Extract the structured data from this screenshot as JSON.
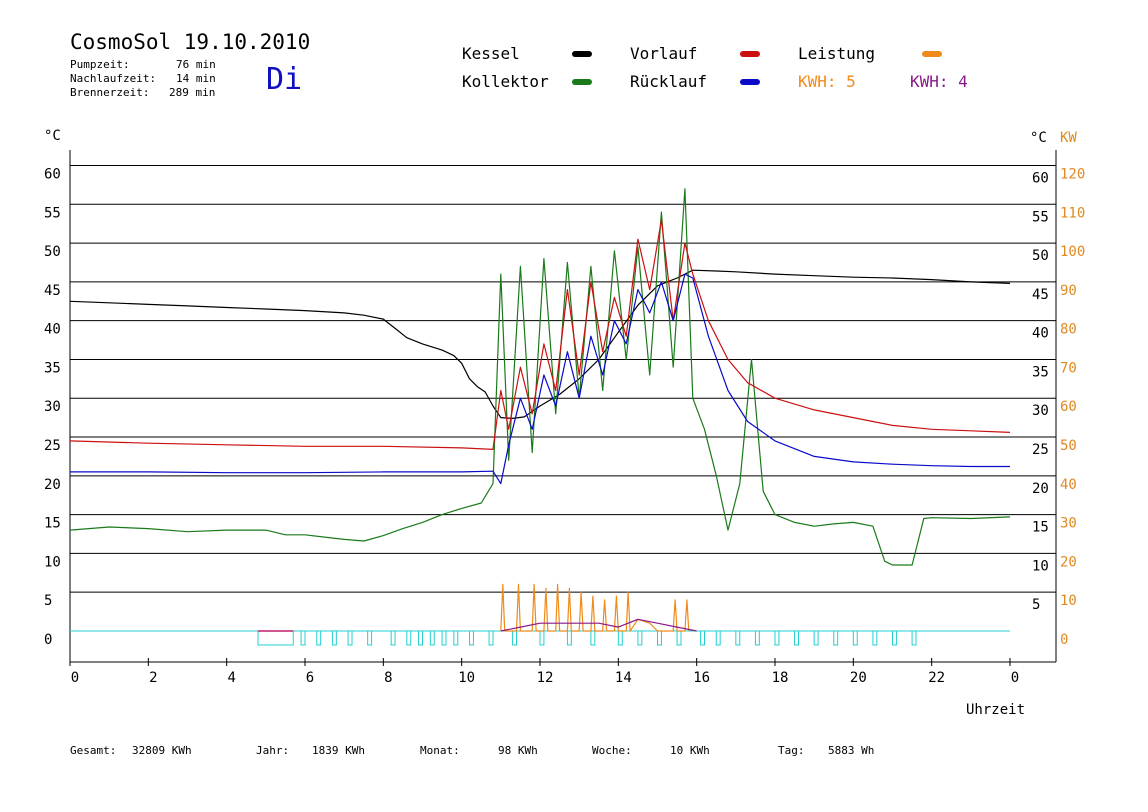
{
  "header": {
    "title": "CosmoSol 19.10.2010",
    "pump_label": "Pumpzeit:",
    "pump_value": "76 min",
    "run_label": "Nachlaufzeit:",
    "run_value": "14 min",
    "burner_label": "Brennerzeit:",
    "burner_value": "289 min",
    "weekday": "Di"
  },
  "legend": {
    "kessel": "Kessel",
    "kollektor": "Kollektor",
    "vorlauf": "Vorlauf",
    "ruecklauf": "Rücklauf",
    "leistung": "Leistung",
    "kwh1": "KWH: 5",
    "kwh2": "KWH: 4"
  },
  "axes": {
    "left_unit": "°C",
    "right_unit": "°C",
    "kw_unit": "KW",
    "xlabel": "Uhrzeit"
  },
  "footer": {
    "gesamt_label": "Gesamt:",
    "gesamt_value": "32809 KWh",
    "jahr_label": "Jahr:",
    "jahr_value": "1839 KWh",
    "monat_label": "Monat:",
    "monat_value": "98 KWh",
    "woche_label": "Woche:",
    "woche_value": "10 KWh",
    "tag_label": "Tag:",
    "tag_value": "5883 Wh"
  },
  "colors": {
    "kessel": "#000000",
    "kollektor": "#1a7a1a",
    "vorlauf": "#cc1010",
    "ruecklauf": "#0a0ac8",
    "leistung": "#f08a1a",
    "kwh2": "#8a1a8a",
    "pump": "#22d0d0",
    "pump_burner": "#c0206a",
    "right_axis": "#e08a20",
    "day": "#1010c0"
  },
  "chart_data": {
    "type": "line",
    "xlim": [
      0,
      24
    ],
    "ylim": [
      -4,
      62
    ],
    "y2lim": [
      -8,
      124
    ],
    "grid": true,
    "x_ticks": [
      "0",
      "2",
      "4",
      "6",
      "8",
      "10",
      "12",
      "14",
      "16",
      "18",
      "20",
      "22",
      "0"
    ],
    "y_ticks": [
      0,
      5,
      10,
      15,
      20,
      25,
      30,
      35,
      40,
      45,
      50,
      55,
      60
    ],
    "y2_ticks": [
      0,
      10,
      20,
      30,
      40,
      50,
      60,
      70,
      80,
      90,
      100,
      110,
      120
    ],
    "series": [
      {
        "name": "Kessel",
        "x": [
          0,
          1,
          2,
          3,
          4,
          5,
          6,
          7,
          7.5,
          8,
          8.3,
          8.6,
          9,
          9.5,
          9.8,
          10,
          10.2,
          10.4,
          10.6,
          10.8,
          11.0,
          11.3,
          11.6,
          12,
          12.5,
          13,
          13.5,
          14,
          14.5,
          15,
          15.5,
          15.9,
          16.5,
          17,
          18,
          19,
          20,
          21,
          22,
          23,
          24
        ],
        "y": [
          42.5,
          42.3,
          42.1,
          41.9,
          41.7,
          41.5,
          41.3,
          41.0,
          40.7,
          40.2,
          39.0,
          37.8,
          37.0,
          36.2,
          35.5,
          34.5,
          32.5,
          31.5,
          30.8,
          29.0,
          27.5,
          27.4,
          27.6,
          29.0,
          30.5,
          32.5,
          35.0,
          38.5,
          42.0,
          44.5,
          45.5,
          46.5,
          46.4,
          46.3,
          46.0,
          45.8,
          45.6,
          45.5,
          45.3,
          45.0,
          44.8
        ]
      },
      {
        "name": "Kollektor",
        "x": [
          0,
          1,
          2,
          3,
          4,
          5,
          5.5,
          6,
          6.5,
          7,
          7.5,
          8,
          8.5,
          9,
          9.5,
          10,
          10.5,
          10.8,
          11.0,
          11.2,
          11.5,
          11.8,
          12.1,
          12.4,
          12.7,
          13.0,
          13.3,
          13.6,
          13.9,
          14.2,
          14.5,
          14.8,
          15.1,
          15.4,
          15.7,
          15.9,
          16.2,
          16.5,
          16.8,
          17.1,
          17.4,
          17.7,
          18,
          18.5,
          19,
          19.5,
          20,
          20.5,
          20.8,
          21.0,
          21.5,
          21.8,
          22,
          23,
          24
        ],
        "y": [
          13,
          13.4,
          13.2,
          12.8,
          13.0,
          13.0,
          12.4,
          12.4,
          12.1,
          11.8,
          11.6,
          12.3,
          13.2,
          14.0,
          15.0,
          15.8,
          16.5,
          19.0,
          46.0,
          22.0,
          47.0,
          23.0,
          48.0,
          28.0,
          47.5,
          30.0,
          47.0,
          31.0,
          49.0,
          35.0,
          49.5,
          33.0,
          54.0,
          34.0,
          57.0,
          30.0,
          26.0,
          20.0,
          13.0,
          19.0,
          35.0,
          18.0,
          15.0,
          14.0,
          13.5,
          13.8,
          14.0,
          13.5,
          9.0,
          8.5,
          8.5,
          14.5,
          14.6,
          14.5,
          14.7
        ]
      },
      {
        "name": "Vorlauf",
        "x": [
          0,
          2,
          4,
          6,
          8,
          10,
          10.8,
          11.0,
          11.2,
          11.5,
          11.8,
          12.1,
          12.4,
          12.7,
          13.0,
          13.3,
          13.6,
          13.9,
          14.2,
          14.5,
          14.8,
          15.1,
          15.4,
          15.7,
          15.9,
          16.3,
          16.8,
          17.3,
          18,
          19,
          20,
          21,
          22,
          23,
          24
        ],
        "y": [
          24.5,
          24.2,
          24.0,
          23.8,
          23.8,
          23.6,
          23.4,
          31.0,
          26.0,
          34.0,
          28.0,
          37.0,
          31.0,
          44.0,
          33.0,
          45.0,
          36.0,
          43.0,
          38.0,
          50.5,
          44.0,
          53.0,
          40.0,
          50.0,
          46.0,
          40.0,
          35.0,
          32.0,
          30.0,
          28.5,
          27.5,
          26.5,
          26.0,
          25.8,
          25.6
        ]
      },
      {
        "name": "Rücklauf",
        "x": [
          0,
          2,
          4,
          6,
          8,
          10,
          10.8,
          11.0,
          11.2,
          11.5,
          11.8,
          12.1,
          12.4,
          12.7,
          13.0,
          13.3,
          13.6,
          13.9,
          14.2,
          14.5,
          14.8,
          15.1,
          15.4,
          15.7,
          15.9,
          16.3,
          16.8,
          17.3,
          18,
          19,
          20,
          21,
          22,
          23,
          24
        ],
        "y": [
          20.5,
          20.5,
          20.4,
          20.4,
          20.5,
          20.5,
          20.6,
          19.0,
          24.0,
          30.0,
          26.0,
          33.0,
          29.0,
          36.0,
          30.0,
          38.0,
          33.0,
          40.0,
          37.0,
          44.0,
          41.0,
          45.0,
          40.0,
          46.0,
          45.5,
          38.0,
          31.0,
          27.0,
          24.5,
          22.5,
          21.8,
          21.5,
          21.3,
          21.2,
          21.2
        ]
      },
      {
        "name": "Leistung",
        "x": [
          11.0,
          11.05,
          11.1,
          11.4,
          11.45,
          11.5,
          11.8,
          11.85,
          11.9,
          12.1,
          12.15,
          12.2,
          12.4,
          12.45,
          12.5,
          12.7,
          12.75,
          12.8,
          13.0,
          13.05,
          13.1,
          13.3,
          13.35,
          13.4,
          13.6,
          13.65,
          13.7,
          13.9,
          13.95,
          14.0,
          14.2,
          14.25,
          14.3,
          14.5,
          14.8,
          15.0,
          15.4,
          15.45,
          15.5,
          15.7,
          15.75,
          15.8
        ],
        "y2": [
          0,
          12,
          0,
          0,
          12,
          0,
          0,
          12,
          0,
          0,
          11,
          0,
          0,
          12,
          0,
          0,
          11,
          0,
          0,
          10,
          0,
          0,
          9,
          0,
          0,
          8,
          0,
          0,
          9,
          0,
          0,
          10,
          0,
          3,
          2,
          0,
          0,
          8,
          0,
          0,
          8,
          0
        ]
      },
      {
        "name": "KWH: 4",
        "x": [
          11.0,
          11.5,
          12.0,
          12.5,
          13.0,
          13.5,
          14.0,
          14.5,
          15.0,
          15.5,
          16.0
        ],
        "y2": [
          0,
          1,
          2,
          2,
          2,
          2,
          1,
          3,
          2,
          1,
          0
        ]
      }
    ],
    "pump_intervals": [
      [
        4.8,
        5.7
      ],
      [
        5.9,
        6.0
      ],
      [
        6.3,
        6.4
      ],
      [
        6.7,
        6.8
      ],
      [
        7.1,
        7.2
      ],
      [
        7.6,
        7.7
      ],
      [
        8.2,
        8.3
      ],
      [
        8.6,
        8.7
      ],
      [
        8.9,
        9.0
      ],
      [
        9.2,
        9.3
      ],
      [
        9.5,
        9.6
      ],
      [
        9.8,
        9.9
      ],
      [
        10.2,
        10.3
      ],
      [
        10.7,
        10.8
      ],
      [
        11.3,
        11.4
      ],
      [
        12.0,
        12.1
      ],
      [
        12.7,
        12.8
      ],
      [
        13.3,
        13.4
      ],
      [
        14.0,
        14.1
      ],
      [
        14.5,
        14.6
      ],
      [
        15.0,
        15.1
      ],
      [
        15.5,
        15.6
      ],
      [
        16.1,
        16.2
      ],
      [
        16.5,
        16.6
      ],
      [
        17.0,
        17.1
      ],
      [
        17.5,
        17.6
      ],
      [
        18.0,
        18.1
      ],
      [
        18.5,
        18.6
      ],
      [
        19.0,
        19.1
      ],
      [
        19.5,
        19.6
      ],
      [
        20.0,
        20.1
      ],
      [
        20.5,
        20.6
      ],
      [
        21.0,
        21.1
      ],
      [
        21.5,
        21.6
      ]
    ]
  }
}
